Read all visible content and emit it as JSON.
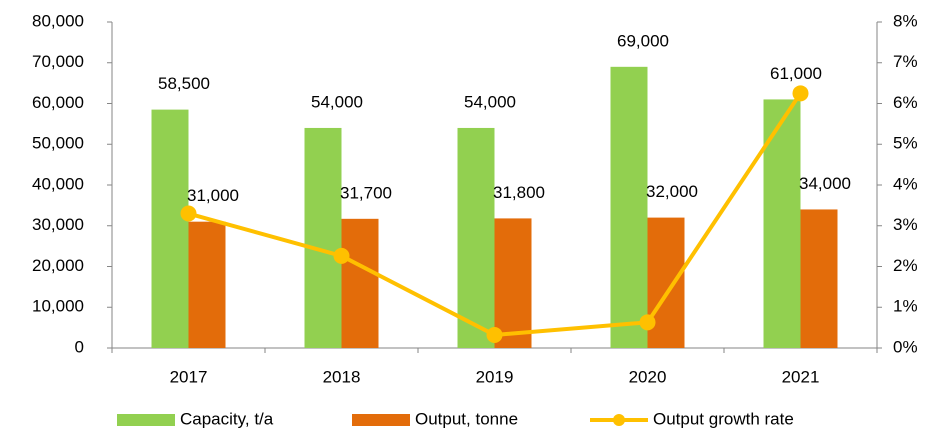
{
  "chart_data": {
    "type": "bar_line",
    "categories": [
      "2017",
      "2018",
      "2019",
      "2020",
      "2021"
    ],
    "series": [
      {
        "name": "Capacity, t/a",
        "type": "bar",
        "color": "#92d050",
        "values": [
          58500,
          54000,
          54000,
          69000,
          61000
        ],
        "value_labels": [
          "58,500",
          "54,000",
          "54,000",
          "69,000",
          "61,000"
        ]
      },
      {
        "name": "Output, tonne",
        "type": "bar",
        "color": "#e36c0a",
        "values": [
          31000,
          31700,
          31800,
          32000,
          34000
        ],
        "value_labels": [
          "31,000",
          "31,700",
          "31,800",
          "32,000",
          "34,000"
        ]
      },
      {
        "name": "Output growth rate",
        "type": "line",
        "axis": "y2",
        "color": "#ffc000",
        "values": [
          3.3,
          2.26,
          0.32,
          0.63,
          6.25
        ]
      }
    ],
    "ylim": [
      0,
      80000
    ],
    "yticks": [
      0,
      {
        "value": 10000,
        "label": "10,000"
      },
      {
        "value": 20000,
        "label": "20,000"
      },
      {
        "value": 30000,
        "label": "30,000"
      },
      {
        "value": 40000,
        "label": "40,000"
      },
      {
        "value": 50000,
        "label": "50,000"
      },
      {
        "value": 60000,
        "label": "60,000"
      },
      {
        "value": 70000,
        "label": "70,000"
      },
      {
        "value": 80000,
        "label": "80,000"
      }
    ],
    "y2lim": [
      0,
      8
    ],
    "y2ticks": [
      {
        "value": 0,
        "label": "0%"
      },
      {
        "value": 1,
        "label": "1%"
      },
      {
        "value": 2,
        "label": "2%"
      },
      {
        "value": 3,
        "label": "3%"
      },
      {
        "value": 4,
        "label": "4%"
      },
      {
        "value": 5,
        "label": "5%"
      },
      {
        "value": 6,
        "label": "6%"
      },
      {
        "value": 7,
        "label": "7%"
      },
      {
        "value": 8,
        "label": "8%"
      }
    ],
    "legend": "bottom"
  }
}
